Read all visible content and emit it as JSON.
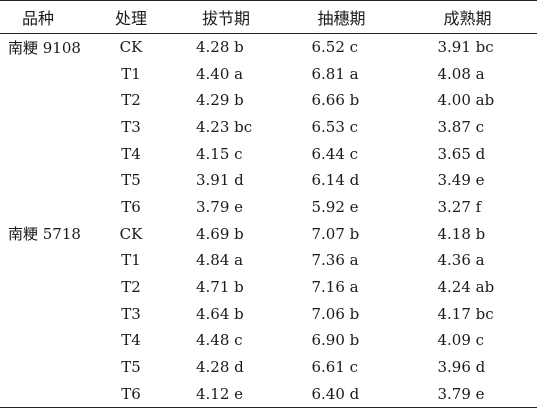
{
  "headers": {
    "variety": "品种",
    "treatment": "处理",
    "jointing": "拔节期",
    "heading": "抽穗期",
    "maturity": "成熟期"
  },
  "rows": [
    {
      "variety": "南粳 9108",
      "treatment": "CK",
      "jointing": "4.28 b",
      "heading": "6.52 c",
      "maturity": "3.91 bc"
    },
    {
      "variety": "",
      "treatment": "T1",
      "jointing": "4.40 a",
      "heading": "6.81 a",
      "maturity": "4.08 a"
    },
    {
      "variety": "",
      "treatment": "T2",
      "jointing": "4.29 b",
      "heading": "6.66 b",
      "maturity": "4.00 ab"
    },
    {
      "variety": "",
      "treatment": "T3",
      "jointing": "4.23 bc",
      "heading": "6.53 c",
      "maturity": "3.87 c"
    },
    {
      "variety": "",
      "treatment": "T4",
      "jointing": "4.15 c",
      "heading": "6.44 c",
      "maturity": "3.65 d"
    },
    {
      "variety": "",
      "treatment": "T5",
      "jointing": "3.91 d",
      "heading": "6.14 d",
      "maturity": "3.49 e"
    },
    {
      "variety": "",
      "treatment": "T6",
      "jointing": "3.79 e",
      "heading": "5.92 e",
      "maturity": "3.27 f"
    },
    {
      "variety": "南粳 5718",
      "treatment": "CK",
      "jointing": "4.69 b",
      "heading": "7.07 b",
      "maturity": "4.18 b"
    },
    {
      "variety": "",
      "treatment": "T1",
      "jointing": "4.84 a",
      "heading": "7.36 a",
      "maturity": "4.36 a"
    },
    {
      "variety": "",
      "treatment": "T2",
      "jointing": "4.71 b",
      "heading": "7.16 a",
      "maturity": "4.24 ab"
    },
    {
      "variety": "",
      "treatment": "T3",
      "jointing": "4.64 b",
      "heading": "7.06 b",
      "maturity": "4.17 bc"
    },
    {
      "variety": "",
      "treatment": "T4",
      "jointing": "4.48 c",
      "heading": "6.90 b",
      "maturity": "4.09 c"
    },
    {
      "variety": "",
      "treatment": "T5",
      "jointing": "4.28 d",
      "heading": "6.61 c",
      "maturity": "3.96 d"
    },
    {
      "variety": "",
      "treatment": "T6",
      "jointing": "4.12 e",
      "heading": "6.40 d",
      "maturity": "3.79 e"
    }
  ]
}
